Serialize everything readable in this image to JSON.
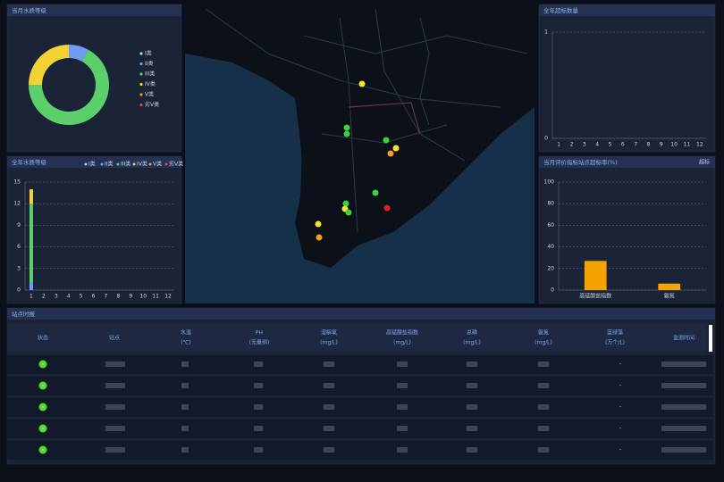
{
  "chart_data": [
    {
      "type": "donut",
      "title": "当月水质等级",
      "categories": [
        "I类",
        "II类",
        "III类",
        "IV类",
        "V类",
        "劣V类"
      ],
      "colors": [
        "#9fd8ef",
        "#6f9cf2",
        "#5bcf6c",
        "#f5d234",
        "#f59a23",
        "#e8443a"
      ],
      "values": [
        0,
        8,
        67,
        25,
        0,
        0
      ]
    },
    {
      "type": "stacked-bar",
      "title": "全年水质等级",
      "categories": [
        "1",
        "2",
        "3",
        "4",
        "5",
        "6",
        "7",
        "8",
        "9",
        "10",
        "11",
        "12"
      ],
      "series": [
        {
          "name": "I类",
          "color": "#9fd8ef",
          "values": [
            0,
            0,
            0,
            0,
            0,
            0,
            0,
            0,
            0,
            0,
            0,
            0
          ]
        },
        {
          "name": "II类",
          "color": "#6f9cf2",
          "values": [
            1,
            0,
            0,
            0,
            0,
            0,
            0,
            0,
            0,
            0,
            0,
            0
          ]
        },
        {
          "name": "III类",
          "color": "#5bcf6c",
          "values": [
            11,
            0,
            0,
            0,
            0,
            0,
            0,
            0,
            0,
            0,
            0,
            0
          ]
        },
        {
          "name": "IV类",
          "color": "#f5d234",
          "values": [
            2,
            0,
            0,
            0,
            0,
            0,
            0,
            0,
            0,
            0,
            0,
            0
          ]
        },
        {
          "name": "V类",
          "color": "#f59a23",
          "values": [
            0,
            0,
            0,
            0,
            0,
            0,
            0,
            0,
            0,
            0,
            0,
            0
          ]
        },
        {
          "name": "劣V类",
          "color": "#e8443a",
          "values": [
            0,
            0,
            0,
            0,
            0,
            0,
            0,
            0,
            0,
            0,
            0,
            0
          ]
        }
      ],
      "ylim": [
        0,
        15
      ],
      "yticks": [
        0,
        3,
        6,
        9,
        12,
        15
      ],
      "grid": true
    },
    {
      "type": "bar",
      "title": "全年超标数量",
      "categories": [
        "1",
        "2",
        "3",
        "4",
        "5",
        "6",
        "7",
        "8",
        "9",
        "10",
        "11",
        "12"
      ],
      "values": [
        0,
        0,
        0,
        0,
        0,
        0,
        0,
        0,
        0,
        0,
        0,
        0
      ],
      "color": "#f5a300",
      "ylim": [
        0,
        1
      ],
      "yticks": [
        0,
        1
      ],
      "grid": true
    },
    {
      "type": "bar",
      "title": "当月评价指标站点超标率(%)",
      "note": "超标",
      "categories": [
        "高锰酸盐指数",
        "氨氮"
      ],
      "values": [
        27,
        6
      ],
      "color": "#f5a300",
      "ylim": [
        0,
        100
      ],
      "yticks": [
        0,
        20,
        40,
        60,
        80,
        100
      ],
      "grid": true
    }
  ],
  "table": {
    "title": "站点时报",
    "headers": [
      {
        "name": "状态"
      },
      {
        "name": "站点"
      },
      {
        "name": "水温",
        "unit": "(℃)"
      },
      {
        "name": "PH",
        "unit": "(无量纲)"
      },
      {
        "name": "溶解氧",
        "unit": "(mg/L)"
      },
      {
        "name": "高锰酸盐指数",
        "unit": "(mg/L)"
      },
      {
        "name": "总磷",
        "unit": "(mg/L)"
      },
      {
        "name": "氨氮",
        "unit": "(mg/L)"
      },
      {
        "name": "蓝绿藻",
        "unit": "(万个/L)"
      },
      {
        "name": "监测时间"
      }
    ],
    "rows": [
      {
        "algae": "-"
      },
      {
        "algae": "-"
      },
      {
        "algae": "-"
      },
      {
        "algae": "-"
      },
      {
        "algae": "-"
      }
    ]
  }
}
